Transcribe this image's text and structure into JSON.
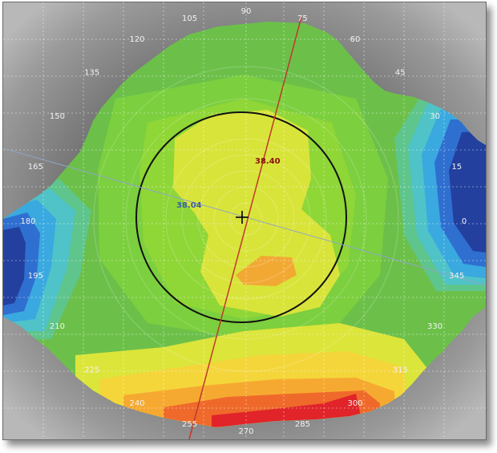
{
  "map": {
    "angle_labels": [
      {
        "text": "90",
        "deg": 90
      },
      {
        "text": "75",
        "deg": 75
      },
      {
        "text": "105",
        "deg": 105
      },
      {
        "text": "60",
        "deg": 60
      },
      {
        "text": "120",
        "deg": 120
      },
      {
        "text": "45",
        "deg": 45
      },
      {
        "text": "135",
        "deg": 135
      },
      {
        "text": "30",
        "deg": 30
      },
      {
        "text": "150",
        "deg": 150
      },
      {
        "text": "15",
        "deg": 15
      },
      {
        "text": "165",
        "deg": 165
      },
      {
        "text": "0",
        "deg": 0
      },
      {
        "text": "180",
        "deg": 180
      },
      {
        "text": "345",
        "deg": 345
      },
      {
        "text": "195",
        "deg": 195
      },
      {
        "text": "330",
        "deg": 330
      },
      {
        "text": "210",
        "deg": 210
      },
      {
        "text": "315",
        "deg": 315
      },
      {
        "text": "225",
        "deg": 225
      },
      {
        "text": "300",
        "deg": 300
      },
      {
        "text": "240",
        "deg": 240
      },
      {
        "text": "285",
        "deg": 285
      },
      {
        "text": "255",
        "deg": 255
      },
      {
        "text": "270",
        "deg": 270
      }
    ],
    "readings": {
      "steep": "38.40",
      "flat": "38.04"
    },
    "colors": {
      "steep_reading": "#8b0f0f",
      "flat_reading": "#3b5fa6",
      "steep_axis": "#c0392b",
      "flat_axis": "#8fa6c4"
    }
  }
}
